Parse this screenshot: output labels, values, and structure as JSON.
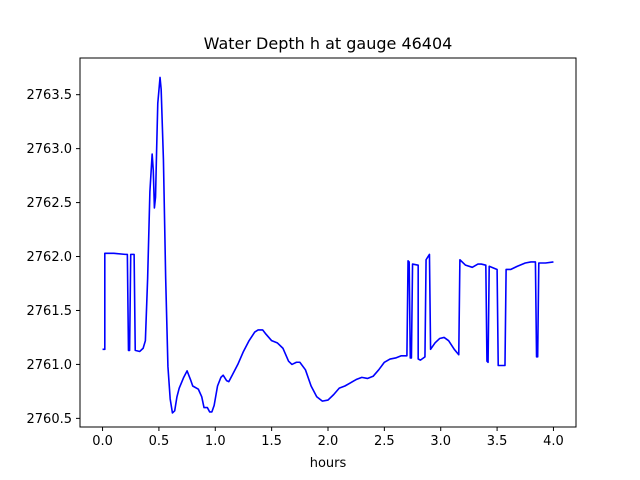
{
  "chart_data": {
    "type": "line",
    "title": "Water Depth h at gauge 46404",
    "xlabel": "hours",
    "ylabel": "",
    "xlim": [
      -0.2,
      4.2
    ],
    "ylim": [
      2760.42,
      2763.84
    ],
    "xticks": [
      0.0,
      0.5,
      1.0,
      1.5,
      2.0,
      2.5,
      3.0,
      3.5,
      4.0
    ],
    "xtick_labels": [
      "0.0",
      "0.5",
      "1.0",
      "1.5",
      "2.0",
      "2.5",
      "3.0",
      "3.5",
      "4.0"
    ],
    "yticks": [
      2760.5,
      2761.0,
      2761.5,
      2762.0,
      2762.5,
      2763.0,
      2763.5
    ],
    "ytick_labels": [
      "2760.5",
      "2761.0",
      "2761.5",
      "2762.0",
      "2762.5",
      "2763.0",
      "2763.5"
    ],
    "grid": false,
    "legend": "none",
    "series": [
      {
        "color": "#0000ff",
        "points": [
          [
            0.0,
            2761.14
          ],
          [
            0.02,
            2761.14
          ],
          [
            0.02,
            2762.03
          ],
          [
            0.1,
            2762.03
          ],
          [
            0.2,
            2762.02
          ],
          [
            0.22,
            2762.02
          ],
          [
            0.23,
            2761.13
          ],
          [
            0.24,
            2761.13
          ],
          [
            0.25,
            2762.02
          ],
          [
            0.28,
            2762.02
          ],
          [
            0.29,
            2761.13
          ],
          [
            0.33,
            2761.12
          ],
          [
            0.36,
            2761.15
          ],
          [
            0.38,
            2761.22
          ],
          [
            0.4,
            2761.8
          ],
          [
            0.42,
            2762.6
          ],
          [
            0.44,
            2762.95
          ],
          [
            0.45,
            2762.8
          ],
          [
            0.46,
            2762.45
          ],
          [
            0.47,
            2762.55
          ],
          [
            0.48,
            2763.0
          ],
          [
            0.49,
            2763.42
          ],
          [
            0.51,
            2763.66
          ],
          [
            0.52,
            2763.55
          ],
          [
            0.54,
            2762.9
          ],
          [
            0.56,
            2761.8
          ],
          [
            0.58,
            2760.98
          ],
          [
            0.6,
            2760.68
          ],
          [
            0.62,
            2760.55
          ],
          [
            0.64,
            2760.57
          ],
          [
            0.66,
            2760.7
          ],
          [
            0.68,
            2760.78
          ],
          [
            0.72,
            2760.88
          ],
          [
            0.75,
            2760.94
          ],
          [
            0.78,
            2760.86
          ],
          [
            0.8,
            2760.8
          ],
          [
            0.85,
            2760.77
          ],
          [
            0.88,
            2760.7
          ],
          [
            0.9,
            2760.6
          ],
          [
            0.93,
            2760.6
          ],
          [
            0.95,
            2760.56
          ],
          [
            0.97,
            2760.56
          ],
          [
            0.99,
            2760.62
          ],
          [
            1.02,
            2760.8
          ],
          [
            1.05,
            2760.88
          ],
          [
            1.07,
            2760.9
          ],
          [
            1.1,
            2760.85
          ],
          [
            1.12,
            2760.84
          ],
          [
            1.15,
            2760.9
          ],
          [
            1.2,
            2761.0
          ],
          [
            1.25,
            2761.12
          ],
          [
            1.3,
            2761.22
          ],
          [
            1.35,
            2761.3
          ],
          [
            1.38,
            2761.32
          ],
          [
            1.42,
            2761.32
          ],
          [
            1.45,
            2761.28
          ],
          [
            1.5,
            2761.22
          ],
          [
            1.55,
            2761.2
          ],
          [
            1.6,
            2761.15
          ],
          [
            1.65,
            2761.03
          ],
          [
            1.68,
            2761.0
          ],
          [
            1.72,
            2761.02
          ],
          [
            1.75,
            2761.02
          ],
          [
            1.8,
            2760.95
          ],
          [
            1.85,
            2760.8
          ],
          [
            1.9,
            2760.7
          ],
          [
            1.95,
            2760.66
          ],
          [
            2.0,
            2760.67
          ],
          [
            2.05,
            2760.72
          ],
          [
            2.1,
            2760.78
          ],
          [
            2.15,
            2760.8
          ],
          [
            2.2,
            2760.83
          ],
          [
            2.25,
            2760.86
          ],
          [
            2.3,
            2760.88
          ],
          [
            2.35,
            2760.87
          ],
          [
            2.4,
            2760.89
          ],
          [
            2.45,
            2760.95
          ],
          [
            2.5,
            2761.02
          ],
          [
            2.55,
            2761.05
          ],
          [
            2.6,
            2761.06
          ],
          [
            2.65,
            2761.08
          ],
          [
            2.7,
            2761.08
          ],
          [
            2.71,
            2761.96
          ],
          [
            2.72,
            2761.95
          ],
          [
            2.73,
            2761.06
          ],
          [
            2.74,
            2761.06
          ],
          [
            2.75,
            2761.93
          ],
          [
            2.8,
            2761.92
          ],
          [
            2.8,
            2761.05
          ],
          [
            2.82,
            2761.04
          ],
          [
            2.86,
            2761.07
          ],
          [
            2.87,
            2761.97
          ],
          [
            2.9,
            2762.02
          ],
          [
            2.91,
            2761.14
          ],
          [
            2.95,
            2761.2
          ],
          [
            2.99,
            2761.24
          ],
          [
            3.03,
            2761.25
          ],
          [
            3.07,
            2761.22
          ],
          [
            3.12,
            2761.14
          ],
          [
            3.16,
            2761.09
          ],
          [
            3.17,
            2761.97
          ],
          [
            3.22,
            2761.92
          ],
          [
            3.28,
            2761.9
          ],
          [
            3.33,
            2761.93
          ],
          [
            3.36,
            2761.93
          ],
          [
            3.4,
            2761.92
          ],
          [
            3.41,
            2761.03
          ],
          [
            3.42,
            2761.02
          ],
          [
            3.43,
            2761.91
          ],
          [
            3.5,
            2761.88
          ],
          [
            3.51,
            2760.99
          ],
          [
            3.57,
            2760.99
          ],
          [
            3.58,
            2761.88
          ],
          [
            3.62,
            2761.88
          ],
          [
            3.68,
            2761.91
          ],
          [
            3.75,
            2761.94
          ],
          [
            3.8,
            2761.95
          ],
          [
            3.84,
            2761.95
          ],
          [
            3.85,
            2761.07
          ],
          [
            3.86,
            2761.07
          ],
          [
            3.87,
            2761.94
          ],
          [
            3.93,
            2761.94
          ],
          [
            4.0,
            2761.95
          ]
        ]
      }
    ]
  }
}
